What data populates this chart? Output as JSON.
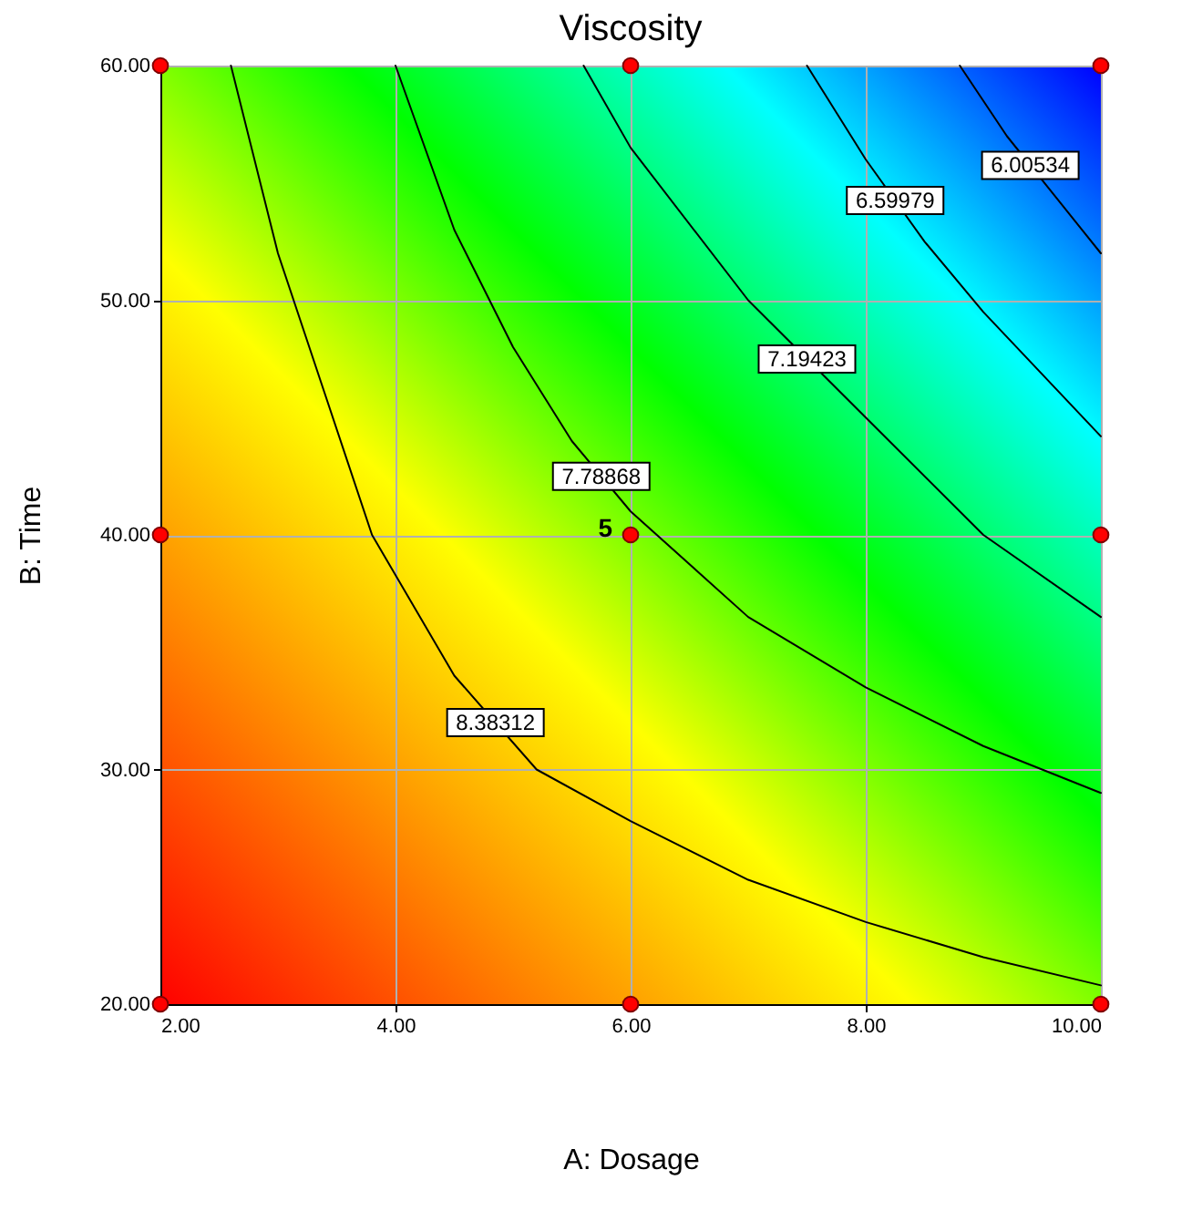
{
  "chart_data": {
    "type": "line",
    "title": "Viscosity",
    "xlabel": "A: Dosage",
    "ylabel": "B: Time",
    "xlim": [
      2,
      10
    ],
    "ylim": [
      20,
      60
    ],
    "xticks": [
      {
        "value": 2,
        "label": "2.00"
      },
      {
        "value": 4,
        "label": "4.00"
      },
      {
        "value": 6,
        "label": "6.00"
      },
      {
        "value": 8,
        "label": "8.00"
      },
      {
        "value": 10,
        "label": "10.00"
      }
    ],
    "yticks": [
      {
        "value": 20,
        "label": "20.00"
      },
      {
        "value": 30,
        "label": "30.00"
      },
      {
        "value": 40,
        "label": "40.00"
      },
      {
        "value": 50,
        "label": "50.00"
      },
      {
        "value": 60,
        "label": "60.00"
      }
    ],
    "grid": true,
    "colors": [
      "#ff0000",
      "#ff8000",
      "#ffff00",
      "#00ff00",
      "#00ffff",
      "#0000ff"
    ],
    "series": [
      {
        "type": "line",
        "name": "8.38312",
        "color": "#000000",
        "line_style": "solid",
        "x": [
          2.6,
          3.0,
          3.4,
          3.8,
          4.5,
          5.2,
          6,
          7,
          8,
          9,
          10
        ],
        "values": [
          60,
          52,
          46,
          40,
          34,
          30,
          27.8,
          25.3,
          23.5,
          22,
          20.8
        ]
      },
      {
        "type": "line",
        "name": "7.78868",
        "color": "#000000",
        "line_style": "solid",
        "x": [
          4.0,
          4.5,
          5.0,
          5.5,
          6,
          7,
          8,
          9,
          10
        ],
        "values": [
          60,
          53,
          48,
          44,
          41,
          36.5,
          33.5,
          31,
          29
        ]
      },
      {
        "type": "line",
        "name": "7.19423",
        "color": "#000000",
        "line_style": "solid",
        "x": [
          5.6,
          6,
          7,
          8,
          9,
          10
        ],
        "values": [
          60,
          56.5,
          50,
          45,
          40,
          36.5
        ]
      },
      {
        "type": "line",
        "name": "6.59979",
        "color": "#000000",
        "line_style": "solid",
        "x": [
          7.5,
          8,
          8.5,
          9,
          10
        ],
        "values": [
          60,
          56,
          52.5,
          49.5,
          44.2
        ]
      },
      {
        "type": "line",
        "name": "6.00534",
        "color": "#000000",
        "line_style": "solid",
        "x": [
          8.8,
          9.2,
          9.6,
          10
        ],
        "values": [
          60,
          57,
          54.5,
          52
        ]
      },
      {
        "type": "scatter",
        "color": "#ff0000",
        "marker": "circle",
        "x": [
          2,
          2,
          2,
          6,
          6,
          6,
          10,
          10,
          10
        ],
        "values": [
          20,
          40,
          60,
          20,
          40,
          60,
          20,
          40,
          60
        ]
      }
    ],
    "annotations": [
      {
        "text": "5",
        "x": 6,
        "y": 40
      }
    ]
  }
}
